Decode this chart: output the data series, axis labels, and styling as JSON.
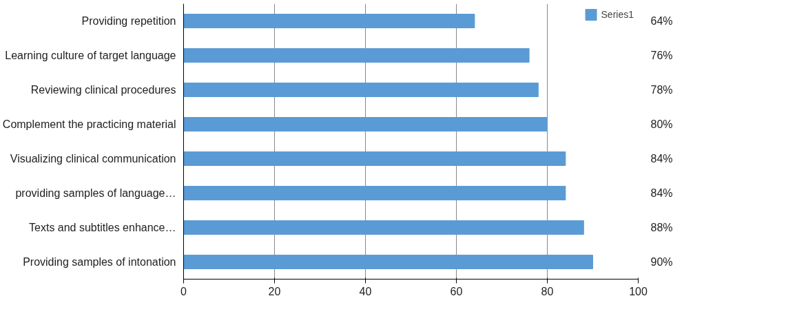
{
  "chart_data": {
    "type": "bar",
    "orientation": "horizontal",
    "categories": [
      "Providing repetition",
      "Learning culture of target language",
      "Reviewing clinical procedures",
      "Complement the practicing material",
      "Visualizing clinical communication",
      "providing samples of language…",
      "Texts and subtitles enhance…",
      "Providing samples of intonation"
    ],
    "series": [
      {
        "name": "Series1",
        "color": "#5b9bd5",
        "values": [
          64,
          76,
          78,
          80,
          84,
          84,
          88,
          90
        ],
        "value_labels": [
          "64%",
          "76%",
          "78%",
          "80%",
          "84%",
          "84%",
          "88%",
          "90%"
        ]
      }
    ],
    "xlim": [
      0,
      100
    ],
    "xticks": [
      0,
      20,
      40,
      60,
      80,
      100
    ],
    "grid": "x",
    "legend": "top right"
  }
}
